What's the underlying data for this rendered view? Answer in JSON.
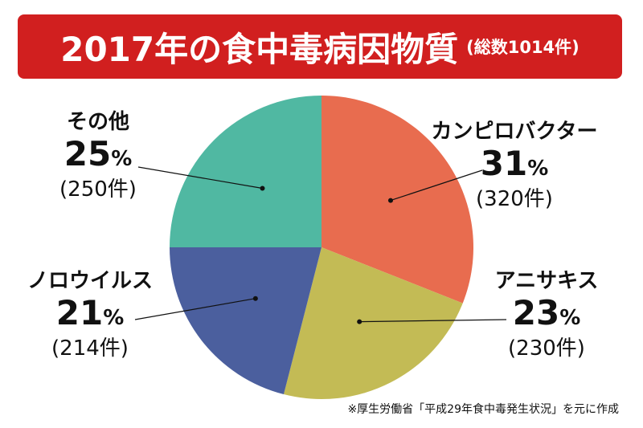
{
  "title": {
    "main": "2017年の食中毒病因物質",
    "sub": "(総数1014件)"
  },
  "footnote": "※厚生労働省「平成29年食中毒発生状況」を元に作成",
  "colors": {
    "title_bg": "#d11f1f",
    "title_text": "#ffffff"
  },
  "chart_data": {
    "type": "pie",
    "title": "2017年の食中毒病因物質",
    "subtitle": "(総数1014件)",
    "total": 1014,
    "start": "12 o'clock",
    "direction": "clockwise",
    "slices": [
      {
        "label": "カンピロバクター",
        "percent": 31,
        "percent_text": "31",
        "count_text": "(320件)",
        "value": 320,
        "color": "#e86c4f"
      },
      {
        "label": "アニサキス",
        "percent": 23,
        "percent_text": "23",
        "count_text": "(230件)",
        "value": 230,
        "color": "#c3bb55"
      },
      {
        "label": "ノロウイルス",
        "percent": 21,
        "percent_text": "21",
        "count_text": "(214件)",
        "value": 214,
        "color": "#4b5f9e"
      },
      {
        "label": "その他",
        "percent": 25,
        "percent_text": "25",
        "count_text": "(250件)",
        "value": 250,
        "color": "#50b8a2"
      }
    ]
  }
}
